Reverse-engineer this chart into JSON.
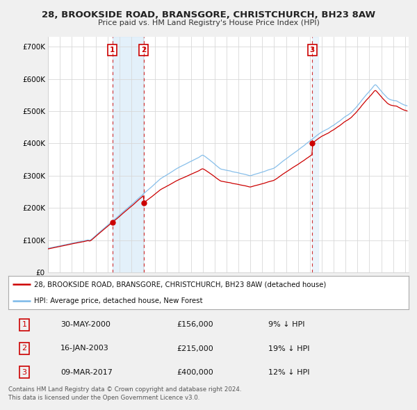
{
  "title": "28, BROOKSIDE ROAD, BRANSGORE, CHRISTCHURCH, BH23 8AW",
  "subtitle": "Price paid vs. HM Land Registry's House Price Index (HPI)",
  "ylim": [
    0,
    730000
  ],
  "yticks": [
    0,
    100000,
    200000,
    300000,
    400000,
    500000,
    600000,
    700000
  ],
  "ytick_labels": [
    "£0",
    "£100K",
    "£200K",
    "£300K",
    "£400K",
    "£500K",
    "£600K",
    "£700K"
  ],
  "hpi_color": "#7ab8e8",
  "price_color": "#cc0000",
  "transactions": [
    {
      "date": 2000.41,
      "price": 156000,
      "label": "1"
    },
    {
      "date": 2003.04,
      "price": 215000,
      "label": "2"
    },
    {
      "date": 2017.19,
      "price": 400000,
      "label": "3"
    }
  ],
  "legend_property": "28, BROOKSIDE ROAD, BRANSGORE, CHRISTCHURCH, BH23 8AW (detached house)",
  "legend_hpi": "HPI: Average price, detached house, New Forest",
  "table": [
    {
      "num": "1",
      "date": "30-MAY-2000",
      "price": "£156,000",
      "info": "9% ↓ HPI"
    },
    {
      "num": "2",
      "date": "16-JAN-2003",
      "price": "£215,000",
      "info": "19% ↓ HPI"
    },
    {
      "num": "3",
      "date": "09-MAR-2017",
      "price": "£400,000",
      "info": "12% ↓ HPI"
    }
  ],
  "footnote": "Contains HM Land Registry data © Crown copyright and database right 2024.\nThis data is licensed under the Open Government Licence v3.0.",
  "xlim_left": 1995.0,
  "xlim_right": 2025.3
}
